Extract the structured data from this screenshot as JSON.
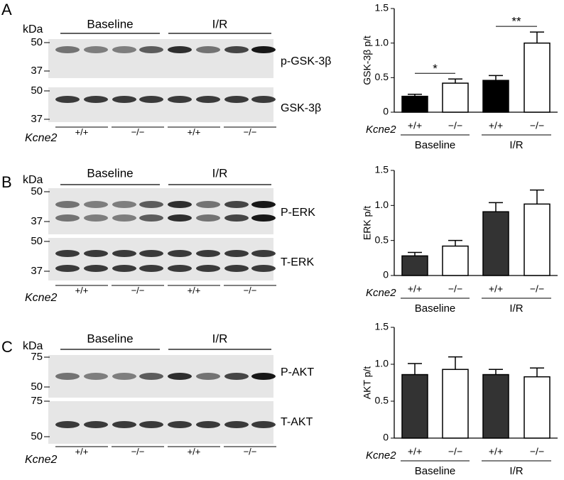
{
  "blots": [
    {
      "letter": "A",
      "kda": "kDa",
      "groups": [
        "Baseline",
        "I/R"
      ],
      "rows": [
        {
          "label": "p-GSK-3β",
          "markers": [
            "50",
            "37"
          ]
        },
        {
          "label": "GSK-3β",
          "markers": [
            "50",
            "37"
          ]
        }
      ],
      "genotype_label": "Kcne2",
      "genotypes": [
        "+/+",
        "−/−",
        "+/+",
        "−/−"
      ]
    },
    {
      "letter": "B",
      "kda": "kDa",
      "groups": [
        "Baseline",
        "I/R"
      ],
      "rows": [
        {
          "label": "P-ERK",
          "markers": [
            "50",
            "37"
          ]
        },
        {
          "label": "T-ERK",
          "markers": [
            "50",
            "37"
          ]
        }
      ],
      "genotype_label": "Kcne2",
      "genotypes": [
        "+/+",
        "−/−",
        "+/+",
        "−/−"
      ]
    },
    {
      "letter": "C",
      "kda": "kDa",
      "groups": [
        "Baseline",
        "I/R"
      ],
      "rows": [
        {
          "label": "P-AKT",
          "markers": [
            "75",
            "50"
          ]
        },
        {
          "label": "T-AKT",
          "markers": [
            "75",
            "50"
          ]
        }
      ],
      "genotype_label": "Kcne2",
      "genotypes": [
        "+/+",
        "−/−",
        "+/+",
        "−/−"
      ]
    }
  ],
  "chart_data": [
    {
      "type": "bar",
      "y_label": "GSK-3β p/t",
      "categories": [
        "+/+",
        "−/−",
        "+/+",
        "−/−"
      ],
      "groups": [
        "Baseline",
        "I/R"
      ],
      "group_label": "Kcne2",
      "values": [
        0.23,
        0.42,
        0.46,
        1.0
      ],
      "errors": [
        0.03,
        0.06,
        0.07,
        0.16
      ],
      "colors": [
        "#000000",
        "#ffffff",
        "#000000",
        "#ffffff"
      ],
      "annotations": [
        "*",
        "**"
      ],
      "ylim": [
        0,
        1.5
      ],
      "yticks": [
        0,
        0.5,
        {
          "value": 1,
          "label": "1.0"
        },
        1.5
      ]
    },
    {
      "type": "bar",
      "y_label": "ERK p/t",
      "categories": [
        "+/+",
        "−/−",
        "+/+",
        "−/−"
      ],
      "groups": [
        "Baseline",
        "I/R"
      ],
      "group_label": "Kcne2",
      "values": [
        0.28,
        0.42,
        0.91,
        1.02
      ],
      "errors": [
        0.05,
        0.08,
        0.13,
        0.2
      ],
      "colors": [
        "#333333",
        "#ffffff",
        "#333333",
        "#ffffff"
      ],
      "ylim": [
        0,
        1.5
      ],
      "yticks": [
        0,
        0.5,
        {
          "value": 1,
          "label": "1.0"
        },
        1.5
      ]
    },
    {
      "type": "bar",
      "y_label": "AKT p/t",
      "categories": [
        "+/+",
        "−/−",
        "+/+",
        "−/−"
      ],
      "groups": [
        "Baseline",
        "I/R"
      ],
      "group_label": "Kcne2",
      "values": [
        0.86,
        0.93,
        0.86,
        0.83
      ],
      "errors": [
        0.15,
        0.17,
        0.07,
        0.12
      ],
      "colors": [
        "#333333",
        "#ffffff",
        "#333333",
        "#ffffff"
      ],
      "ylim": [
        0,
        1.5
      ],
      "yticks": [
        0,
        0.5,
        {
          "value": 1,
          "label": "1.0"
        },
        1.5
      ]
    }
  ]
}
